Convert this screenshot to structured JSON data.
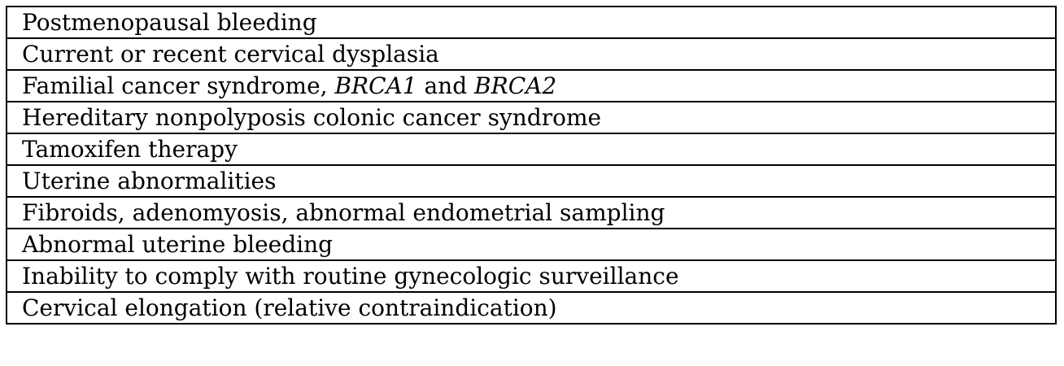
{
  "rows": [
    {
      "text": "Postmenopausal bleeding"
    },
    {
      "text": "Current or recent cervical dysplasia"
    },
    {
      "text_a": "Familial cancer syndrome, ",
      "text_b": "BRCA1",
      "text_c": " and ",
      "text_d": "BRCA2"
    },
    {
      "text": "Hereditary nonpolyposis colonic cancer syndrome"
    },
    {
      "text": "Tamoxifen therapy"
    },
    {
      "text": "Uterine abnormalities"
    },
    {
      "text": "Fibroids, adenomyosis, abnormal endometrial sampling"
    },
    {
      "text": "Abnormal uterine bleeding"
    },
    {
      "text": "Inability to comply with routine gynecologic surveillance"
    },
    {
      "text": "Cervical elongation (relative contraindication)"
    }
  ]
}
